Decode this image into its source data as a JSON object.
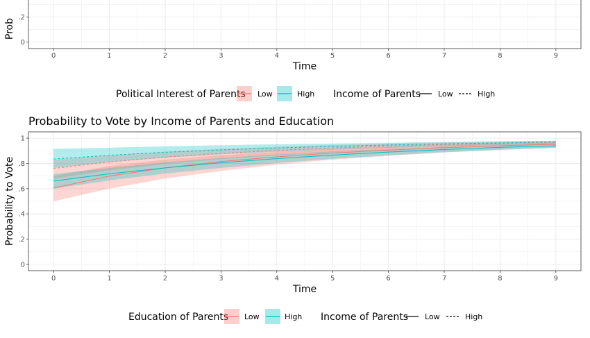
{
  "colors": {
    "low": "#F8766D",
    "high": "#00BFC4",
    "grid": "#EBEBEB",
    "panel_border": "#333333"
  },
  "chart_data": [
    {
      "type": "line",
      "title": "",
      "xlabel": "Time",
      "ylabel": "Prob",
      "xlim": [
        -0.45,
        9.45
      ],
      "ylim": [
        0,
        1.05
      ],
      "xticks": [
        "0",
        "1",
        "2",
        "3",
        "4",
        "5",
        "6",
        "7",
        "8",
        "9"
      ],
      "yticks": [
        ".2",
        "0"
      ],
      "legend": {
        "color_title": "Political Interest of Parents",
        "color_levels": [
          "Low",
          "High"
        ],
        "linetype_title": "Income of Parents",
        "linetype_levels": [
          "Low",
          "High"
        ]
      }
    },
    {
      "type": "line",
      "title": "Probability to Vote by Income of Parents and Education",
      "xlabel": "Time",
      "ylabel": "Probability to Vote",
      "xlim": [
        -0.45,
        9.45
      ],
      "ylim": [
        -0.05,
        1.05
      ],
      "xticks": [
        "0",
        "1",
        "2",
        "3",
        "4",
        "5",
        "6",
        "7",
        "8",
        "9"
      ],
      "yticks": [
        {
          "value": 1,
          "label": "1"
        },
        {
          "value": 0.8,
          "label": ".8"
        },
        {
          "value": 0.6,
          "label": ".6"
        },
        {
          "value": 0.4,
          "label": ".4"
        },
        {
          "value": 0.2,
          "label": ".2"
        },
        {
          "value": 0,
          "label": "0"
        }
      ],
      "x": [
        0,
        1,
        2,
        3,
        4,
        5,
        6,
        7,
        8,
        9
      ],
      "series": [
        {
          "name": "Education Low, Income Low",
          "color": "low",
          "linetype": "solid",
          "values": [
            0.605,
            0.7,
            0.765,
            0.815,
            0.852,
            0.882,
            0.905,
            0.925,
            0.94,
            0.952
          ],
          "lower": [
            0.5,
            0.6,
            0.68,
            0.74,
            0.79,
            0.83,
            0.86,
            0.888,
            0.908,
            0.925
          ],
          "upper": [
            0.7,
            0.78,
            0.83,
            0.865,
            0.892,
            0.913,
            0.93,
            0.945,
            0.957,
            0.967
          ]
        },
        {
          "name": "Education Low, Income High",
          "color": "low",
          "linetype": "dashed",
          "values": [
            0.76,
            0.812,
            0.85,
            0.88,
            0.903,
            0.922,
            0.937,
            0.95,
            0.96,
            0.968
          ],
          "lower": [
            0.68,
            0.745,
            0.795,
            0.835,
            0.866,
            0.89,
            0.91,
            0.926,
            0.94,
            0.95
          ],
          "upper": [
            0.83,
            0.865,
            0.893,
            0.915,
            0.932,
            0.946,
            0.957,
            0.966,
            0.973,
            0.979
          ]
        },
        {
          "name": "Education High, Income Low",
          "color": "high",
          "linetype": "solid",
          "values": [
            0.66,
            0.718,
            0.765,
            0.805,
            0.838,
            0.866,
            0.89,
            0.91,
            0.927,
            0.94
          ],
          "lower": [
            0.6,
            0.665,
            0.72,
            0.765,
            0.803,
            0.836,
            0.864,
            0.888,
            0.907,
            0.922
          ],
          "upper": [
            0.715,
            0.765,
            0.808,
            0.843,
            0.872,
            0.895,
            0.914,
            0.93,
            0.944,
            0.955
          ]
        },
        {
          "name": "Education High, Income High",
          "color": "high",
          "linetype": "dashed",
          "values": [
            0.835,
            0.865,
            0.888,
            0.907,
            0.922,
            0.935,
            0.946,
            0.955,
            0.963,
            0.97
          ],
          "lower": [
            0.765,
            0.81,
            0.845,
            0.872,
            0.893,
            0.91,
            0.924,
            0.936,
            0.946,
            0.954
          ],
          "upper": [
            0.915,
            0.925,
            0.935,
            0.944,
            0.952,
            0.958,
            0.964,
            0.97,
            0.975,
            0.98
          ]
        }
      ],
      "legend": {
        "color_title": "Education of Parents",
        "color_levels": [
          "Low",
          "High"
        ],
        "linetype_title": "Income of Parents",
        "linetype_levels": [
          "Low",
          "High"
        ]
      }
    }
  ]
}
